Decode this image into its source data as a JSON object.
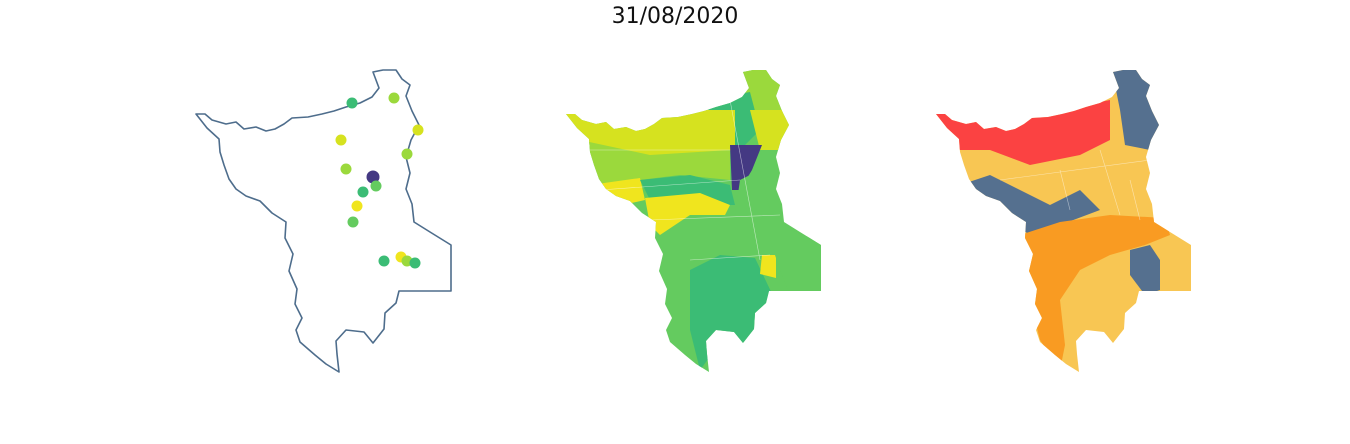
{
  "figure": {
    "title": "31/08/2020"
  },
  "colors": {
    "outline": "#4e6d8c",
    "viridis_dark": "#443983",
    "viridis_teal": "#3bbc75",
    "viridis_green": "#64cb5f",
    "viridis_lime": "#9bd93c",
    "viridis_yellowgreen": "#d6e21f",
    "viridis_yellow": "#f0e51e",
    "risk_red": "#fb4242",
    "risk_orange": "#f99b22",
    "risk_light": "#f8c653",
    "risk_slate": "#55708f"
  },
  "panels": [
    {
      "name": "station-points-map",
      "kind": "points"
    },
    {
      "name": "viridis-region-map",
      "kind": "choropleth"
    },
    {
      "name": "risk-category-map",
      "kind": "choropleth"
    }
  ]
}
